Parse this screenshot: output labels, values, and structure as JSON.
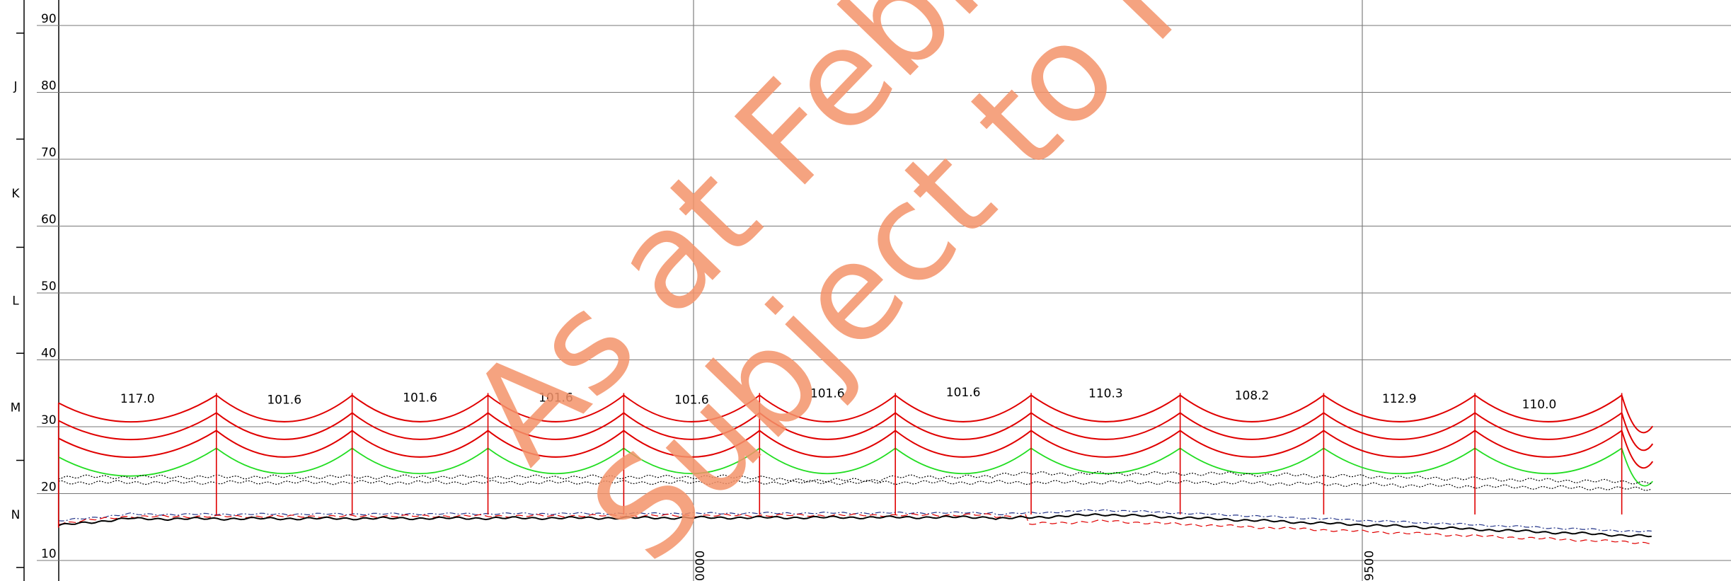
{
  "axis": {
    "ticks": [
      90,
      80,
      70,
      60,
      50,
      40,
      30,
      20,
      10
    ]
  },
  "zones": [
    "J",
    "K",
    "L",
    "M",
    "N"
  ],
  "spans": [
    "117.0",
    "101.6",
    "101.6",
    "101.6",
    "101.6",
    "101.6",
    "101.6",
    "110.3",
    "108.2",
    "112.9",
    "110.0"
  ],
  "chainage": [
    "0000",
    "9500"
  ],
  "watermark": [
    "As at Febr",
    "Subject to Mi"
  ]
}
